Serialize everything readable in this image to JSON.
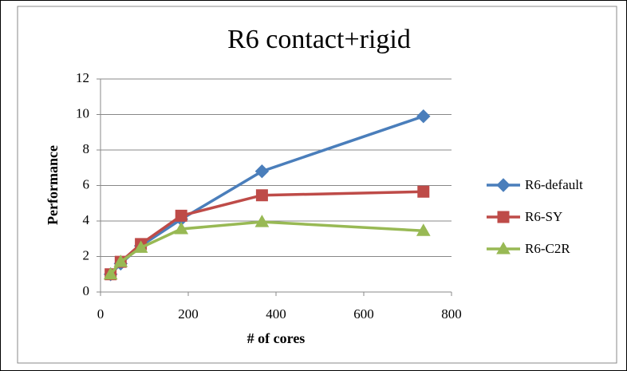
{
  "chart_data": {
    "type": "line",
    "title": "R6 contact+rigid",
    "xlabel": "# of cores",
    "ylabel": "Performance",
    "x": [
      23,
      46,
      92,
      184,
      368,
      736
    ],
    "series": [
      {
        "name": "R6-default",
        "color": "#4a7ebb",
        "marker": "diamond",
        "values": [
          1,
          1.6,
          2.6,
          4.1,
          6.8,
          9.9
        ]
      },
      {
        "name": "R6-SY",
        "color": "#be4b48",
        "marker": "square",
        "values": [
          1,
          1.7,
          2.7,
          4.3,
          5.45,
          5.65
        ]
      },
      {
        "name": "R6-C2R",
        "color": "#98b954",
        "marker": "triangle",
        "values": [
          1,
          1.7,
          2.5,
          3.55,
          3.95,
          3.45
        ]
      }
    ],
    "xlim": [
      0,
      800
    ],
    "xticks": [
      0,
      200,
      400,
      600,
      800
    ],
    "ylim": [
      0,
      12
    ],
    "yticks": [
      0,
      2,
      4,
      6,
      8,
      10,
      12
    ],
    "grid": true,
    "legend": "right"
  }
}
